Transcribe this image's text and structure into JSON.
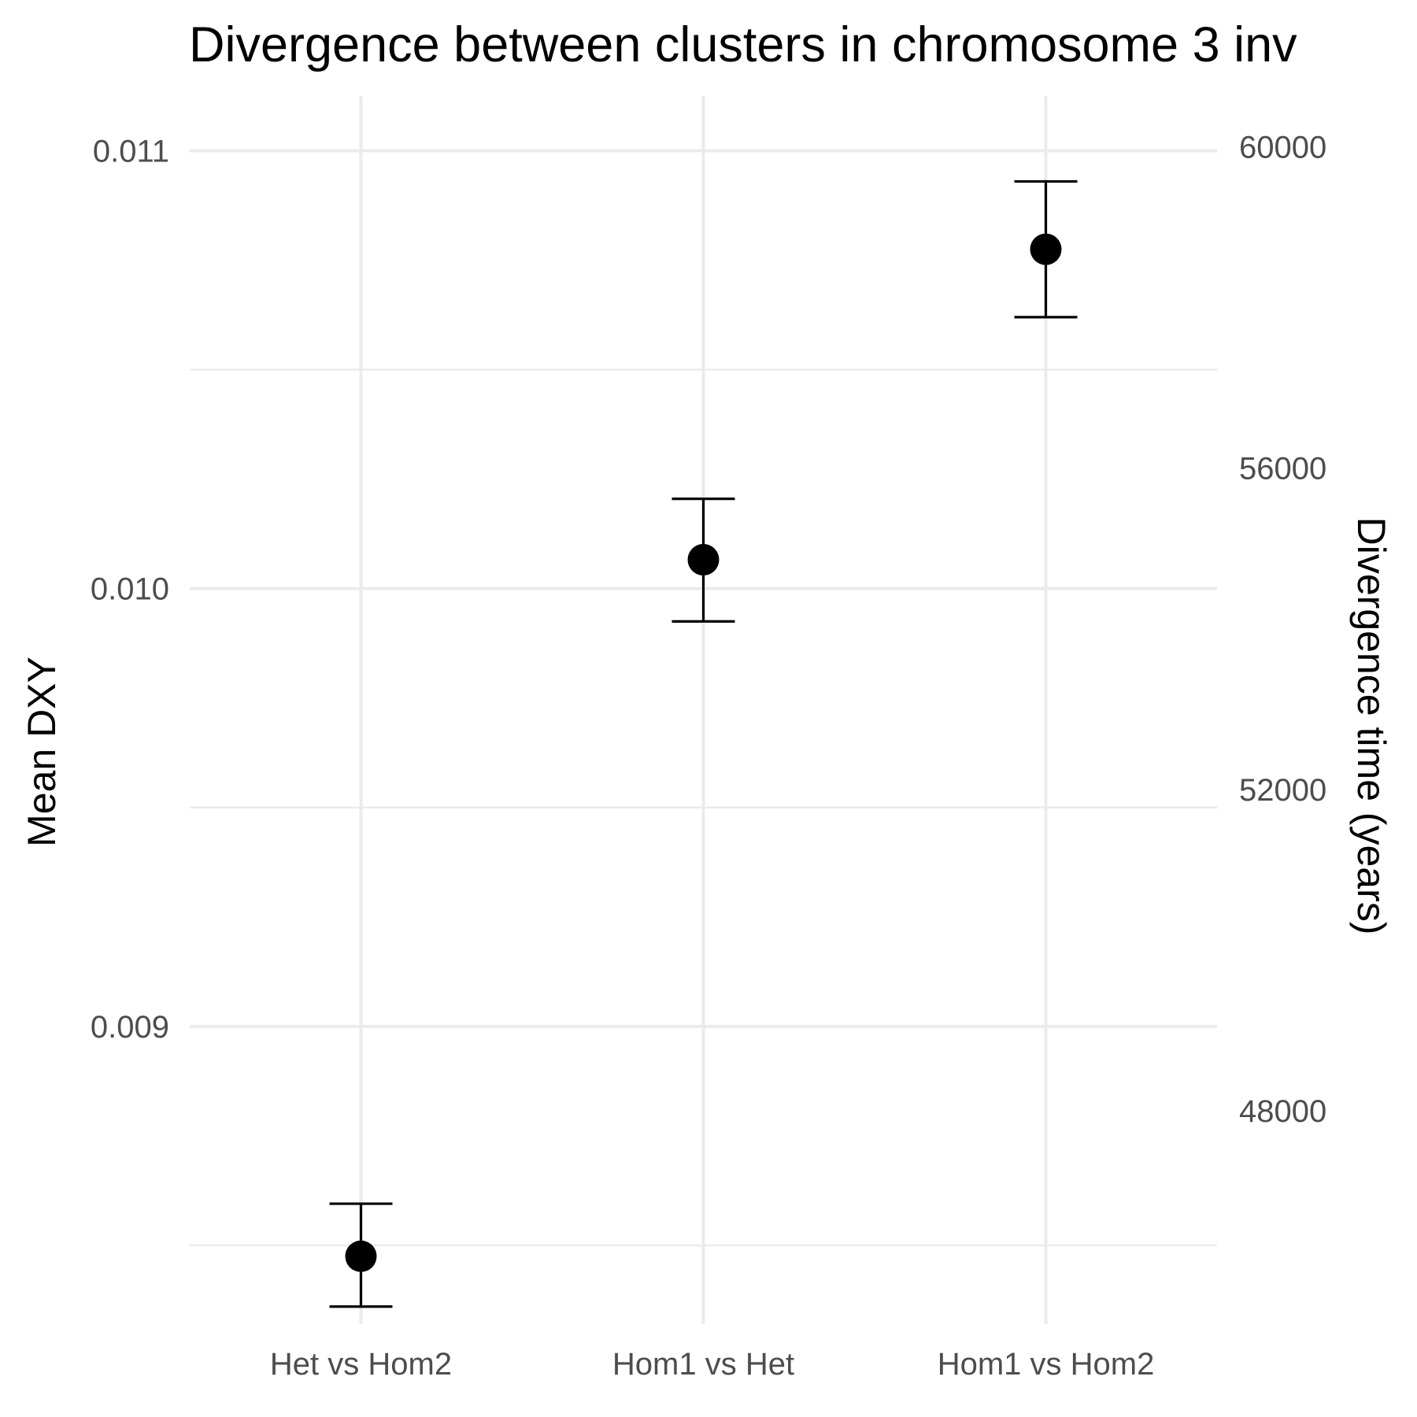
{
  "chart_data": {
    "type": "scatter",
    "title": "Divergence between clusters in chromosome 3 inv",
    "ylabel": "Mean DXY",
    "ylabel_right": "Divergence time (years)",
    "xlabel": "",
    "categories": [
      "Het vs Hom2",
      "Hom1 vs Het",
      "Hom1 vs Hom2"
    ],
    "series": [
      {
        "values": [
          0.008475,
          0.010066,
          0.010775
        ],
        "lower": [
          0.00836,
          0.009925,
          0.01062
        ],
        "upper": [
          0.008595,
          0.010205,
          0.01093
        ]
      }
    ],
    "ylim": [
      0.00832,
      0.011125
    ],
    "y_major_ticks": [
      0.009,
      0.01,
      0.011
    ],
    "y_major_tick_labels": [
      "0.009",
      "0.010",
      "0.011"
    ],
    "y_minor_ticks": [
      0.0085,
      0.0095,
      0.0105
    ],
    "y_right_ticks": [
      48000,
      52000,
      56000,
      60000
    ],
    "y_right_tick_labels": [
      "48000",
      "52000",
      "56000",
      "60000"
    ],
    "years_per_unit": 5450000,
    "grid": true,
    "legend": "none"
  }
}
